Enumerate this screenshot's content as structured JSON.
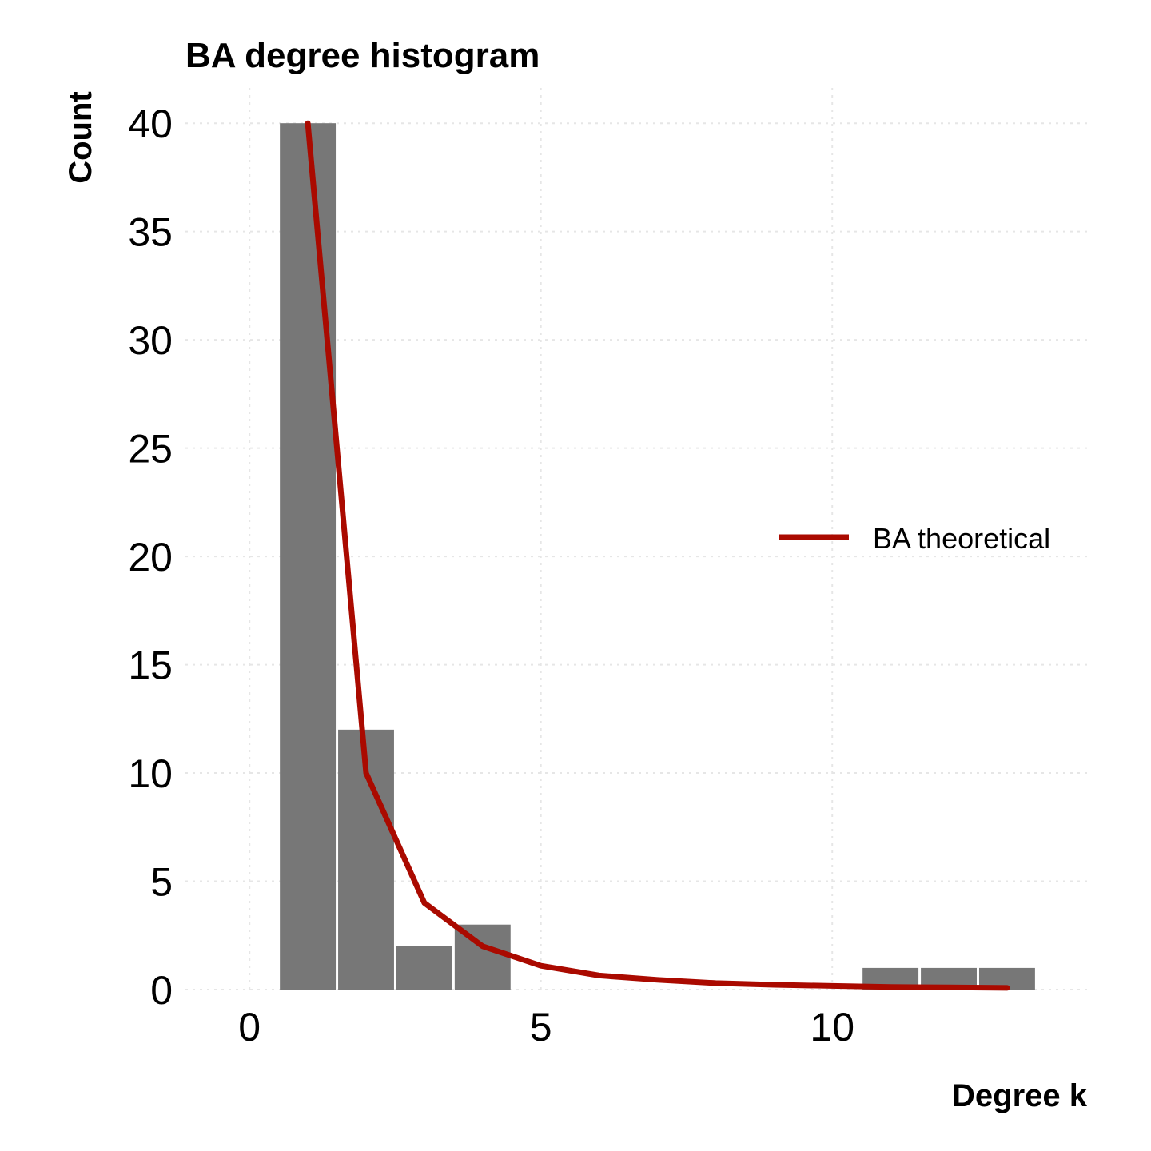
{
  "chart_data": {
    "type": "bar",
    "title": "BA degree histogram",
    "xlabel": "Degree k",
    "ylabel": "Count",
    "xlim": [
      -1.1,
      14.4
    ],
    "ylim": [
      0,
      42
    ],
    "x_ticks": [
      0,
      5,
      10
    ],
    "y_ticks": [
      0,
      5,
      10,
      15,
      20,
      25,
      30,
      35,
      40
    ],
    "grid": true,
    "bar_color": "#777777",
    "histogram": {
      "bins": [
        {
          "x_start": 0.5,
          "x_end": 1.5,
          "count": 40
        },
        {
          "x_start": 1.5,
          "x_end": 2.5,
          "count": 12
        },
        {
          "x_start": 2.5,
          "x_end": 3.5,
          "count": 2
        },
        {
          "x_start": 3.5,
          "x_end": 4.5,
          "count": 3
        },
        {
          "x_start": 10.5,
          "x_end": 11.5,
          "count": 1
        },
        {
          "x_start": 11.5,
          "x_end": 12.5,
          "count": 1
        },
        {
          "x_start": 12.5,
          "x_end": 13.5,
          "count": 1
        }
      ]
    },
    "series": [
      {
        "name": "BA theoretical",
        "type": "line",
        "color": "#aa0a00",
        "x": [
          1,
          2,
          3,
          4,
          5,
          6,
          7,
          8,
          9,
          10,
          11,
          12,
          13
        ],
        "y": [
          40,
          10,
          4.0,
          2.0,
          1.1,
          0.65,
          0.45,
          0.3,
          0.22,
          0.17,
          0.12,
          0.1,
          0.08
        ]
      }
    ],
    "legend": {
      "position": "right",
      "entries": [
        "BA theoretical"
      ]
    }
  }
}
